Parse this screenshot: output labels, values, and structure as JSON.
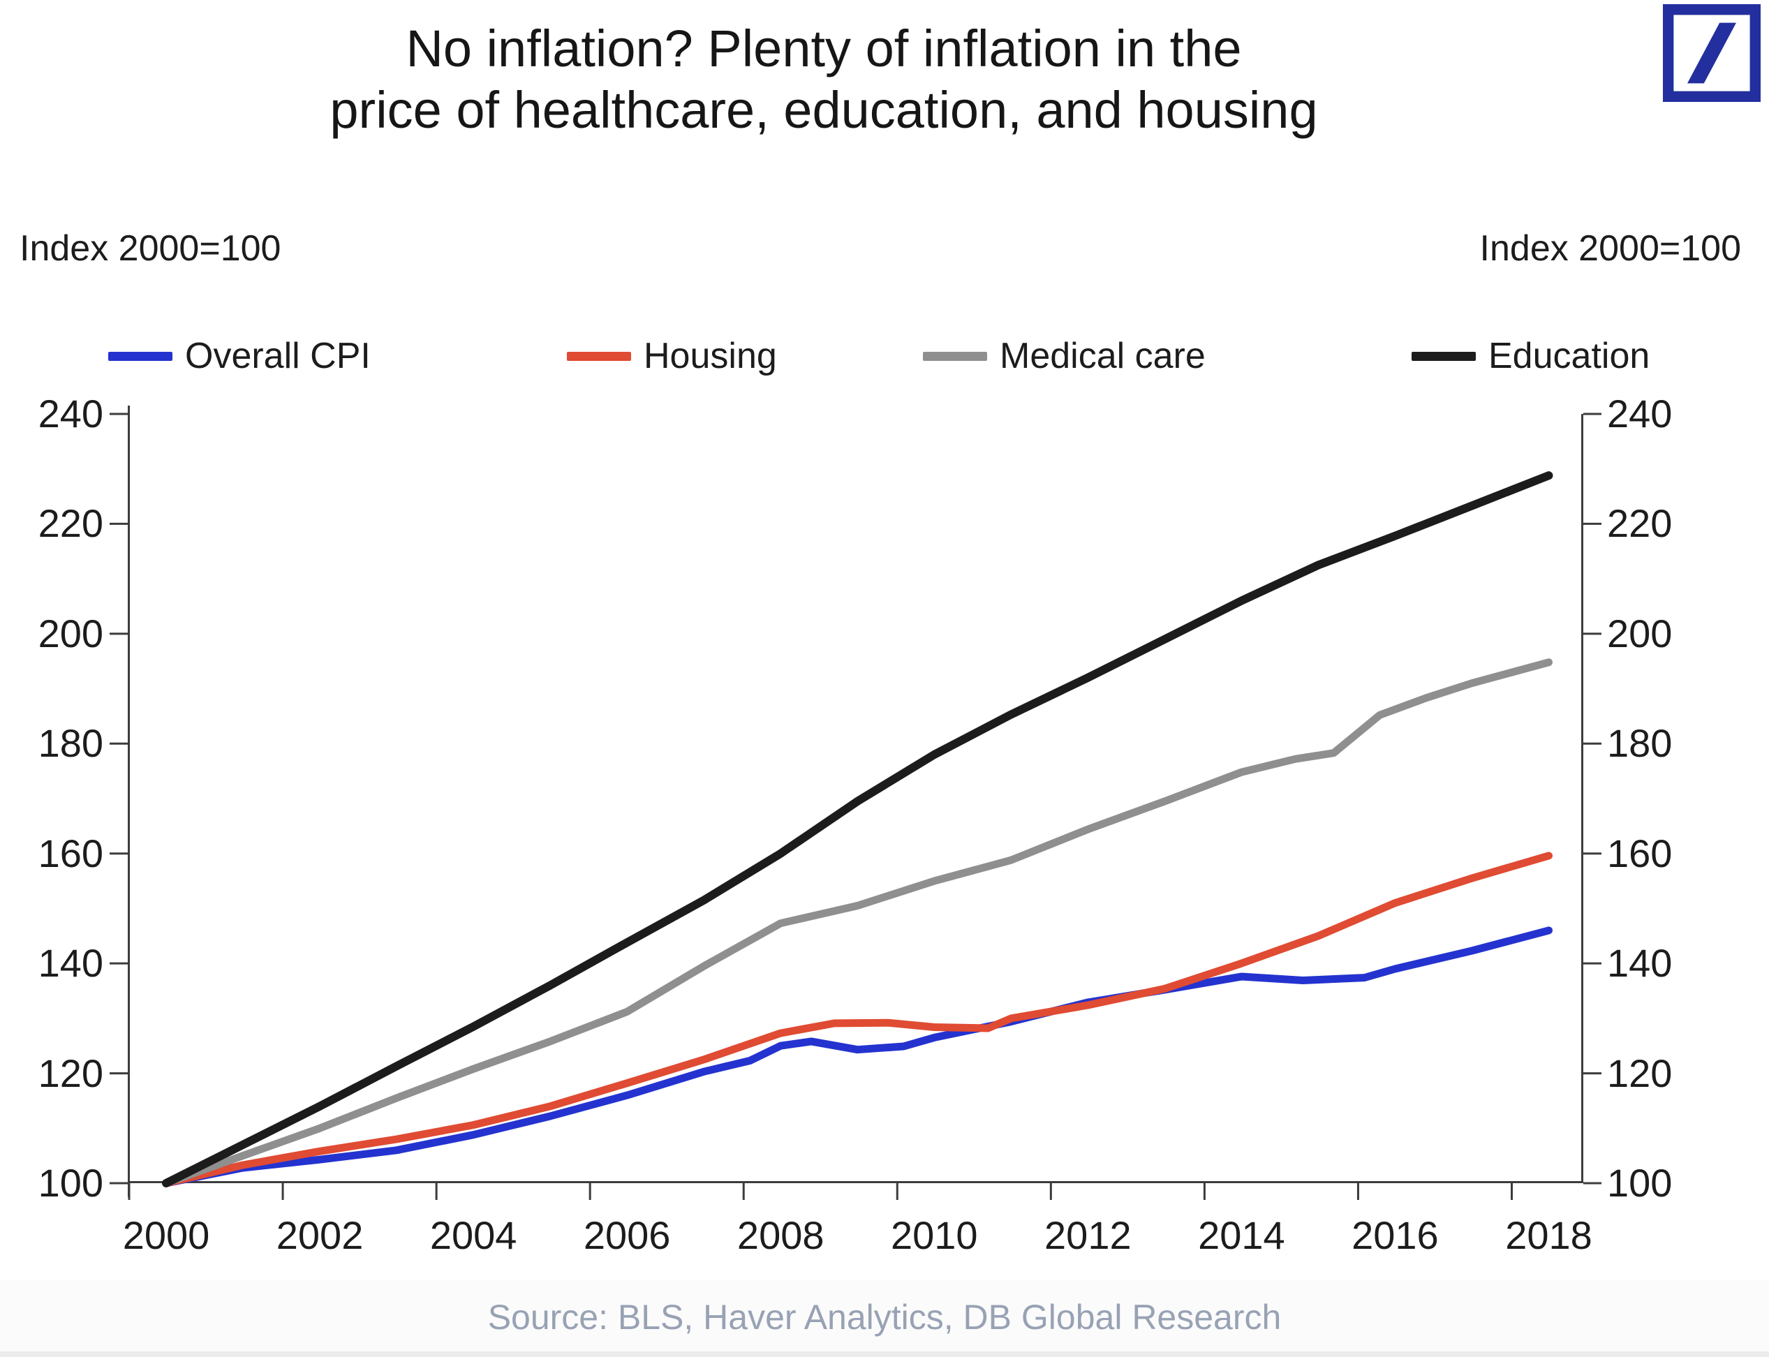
{
  "header": {
    "title_line1": "No inflation? Plenty of inflation in the",
    "title_line2": "price of healthcare, education, and housing"
  },
  "logo": {
    "name": "deutsche-bank-logo",
    "color": "#232f9e"
  },
  "axis_captions": {
    "left": "Index 2000=100",
    "right": "Index 2000=100"
  },
  "footer": {
    "source": "Source: BLS, Haver Analytics, DB Global Research"
  },
  "chart_data": {
    "type": "line",
    "title": "No inflation? Plenty of inflation in the price of healthcare, education, and housing",
    "y_label_left": "Index 2000=100",
    "y_label_right": "Index 2000=100",
    "xlim": [
      2000,
      2018
    ],
    "ylim": [
      100,
      240
    ],
    "x_ticks": [
      2000,
      2002,
      2004,
      2006,
      2008,
      2010,
      2012,
      2014,
      2016,
      2018
    ],
    "y_ticks": [
      100,
      120,
      140,
      160,
      180,
      200,
      220,
      240
    ],
    "grid": false,
    "legend_position": "top",
    "axis_color": "#3c3c3c",
    "source": "Source: BLS, Haver Analytics, DB Global Research",
    "series": [
      {
        "name": "Overall CPI",
        "color": "#2433cf",
        "stroke_width": 11,
        "points": [
          [
            2000,
            100
          ],
          [
            2001,
            102.8
          ],
          [
            2002,
            104.3
          ],
          [
            2003,
            106.0
          ],
          [
            2004,
            108.8
          ],
          [
            2005,
            112.2
          ],
          [
            2006,
            116.0
          ],
          [
            2007,
            120.3
          ],
          [
            2007.6,
            122.3
          ],
          [
            2008,
            125.0
          ],
          [
            2008.4,
            125.8
          ],
          [
            2009,
            124.3
          ],
          [
            2009.6,
            124.9
          ],
          [
            2010,
            126.5
          ],
          [
            2011,
            129.4
          ],
          [
            2012,
            132.9
          ],
          [
            2013,
            135.2
          ],
          [
            2014,
            137.6
          ],
          [
            2014.8,
            136.9
          ],
          [
            2015.6,
            137.4
          ],
          [
            2016,
            139.0
          ],
          [
            2017,
            142.3
          ],
          [
            2018,
            146.0
          ]
        ]
      },
      {
        "name": "Housing",
        "color": "#e04b33",
        "stroke_width": 11,
        "points": [
          [
            2000,
            100
          ],
          [
            2001,
            103.3
          ],
          [
            2002,
            105.8
          ],
          [
            2003,
            108.0
          ],
          [
            2004,
            110.6
          ],
          [
            2005,
            114.0
          ],
          [
            2006,
            118.2
          ],
          [
            2007,
            122.5
          ],
          [
            2008,
            127.3
          ],
          [
            2008.7,
            129.1
          ],
          [
            2009.4,
            129.2
          ],
          [
            2010,
            128.4
          ],
          [
            2010.7,
            128.2
          ],
          [
            2011,
            130.0
          ],
          [
            2012,
            132.4
          ],
          [
            2013,
            135.4
          ],
          [
            2014,
            140.0
          ],
          [
            2015,
            145.0
          ],
          [
            2016,
            151.0
          ],
          [
            2017,
            155.5
          ],
          [
            2018,
            159.6
          ]
        ]
      },
      {
        "name": "Medical care",
        "color": "#8f8f8f",
        "stroke_width": 11,
        "points": [
          [
            2000,
            100
          ],
          [
            2001,
            105.0
          ],
          [
            2002,
            110.0
          ],
          [
            2003,
            115.5
          ],
          [
            2004,
            120.8
          ],
          [
            2005,
            125.8
          ],
          [
            2006,
            131.2
          ],
          [
            2007,
            139.5
          ],
          [
            2008,
            147.3
          ],
          [
            2009,
            150.5
          ],
          [
            2010,
            155.0
          ],
          [
            2011,
            158.8
          ],
          [
            2012,
            164.4
          ],
          [
            2013,
            169.5
          ],
          [
            2014,
            174.8
          ],
          [
            2014.7,
            177.2
          ],
          [
            2015.2,
            178.3
          ],
          [
            2015.8,
            185.2
          ],
          [
            2016.4,
            188.3
          ],
          [
            2017,
            191.0
          ],
          [
            2018,
            194.8
          ]
        ]
      },
      {
        "name": "Education",
        "color": "#1c1c1c",
        "stroke_width": 12,
        "points": [
          [
            2000,
            100
          ],
          [
            2001,
            107.0
          ],
          [
            2002,
            114.0
          ],
          [
            2003,
            121.3
          ],
          [
            2004,
            128.5
          ],
          [
            2005,
            136.0
          ],
          [
            2006,
            143.8
          ],
          [
            2007,
            151.5
          ],
          [
            2008,
            160.0
          ],
          [
            2009,
            169.5
          ],
          [
            2010,
            178.0
          ],
          [
            2011,
            185.3
          ],
          [
            2012,
            192.0
          ],
          [
            2013,
            199.0
          ],
          [
            2014,
            206.0
          ],
          [
            2015,
            212.5
          ],
          [
            2016,
            217.8
          ],
          [
            2017,
            223.3
          ],
          [
            2018,
            228.8
          ]
        ]
      }
    ]
  }
}
